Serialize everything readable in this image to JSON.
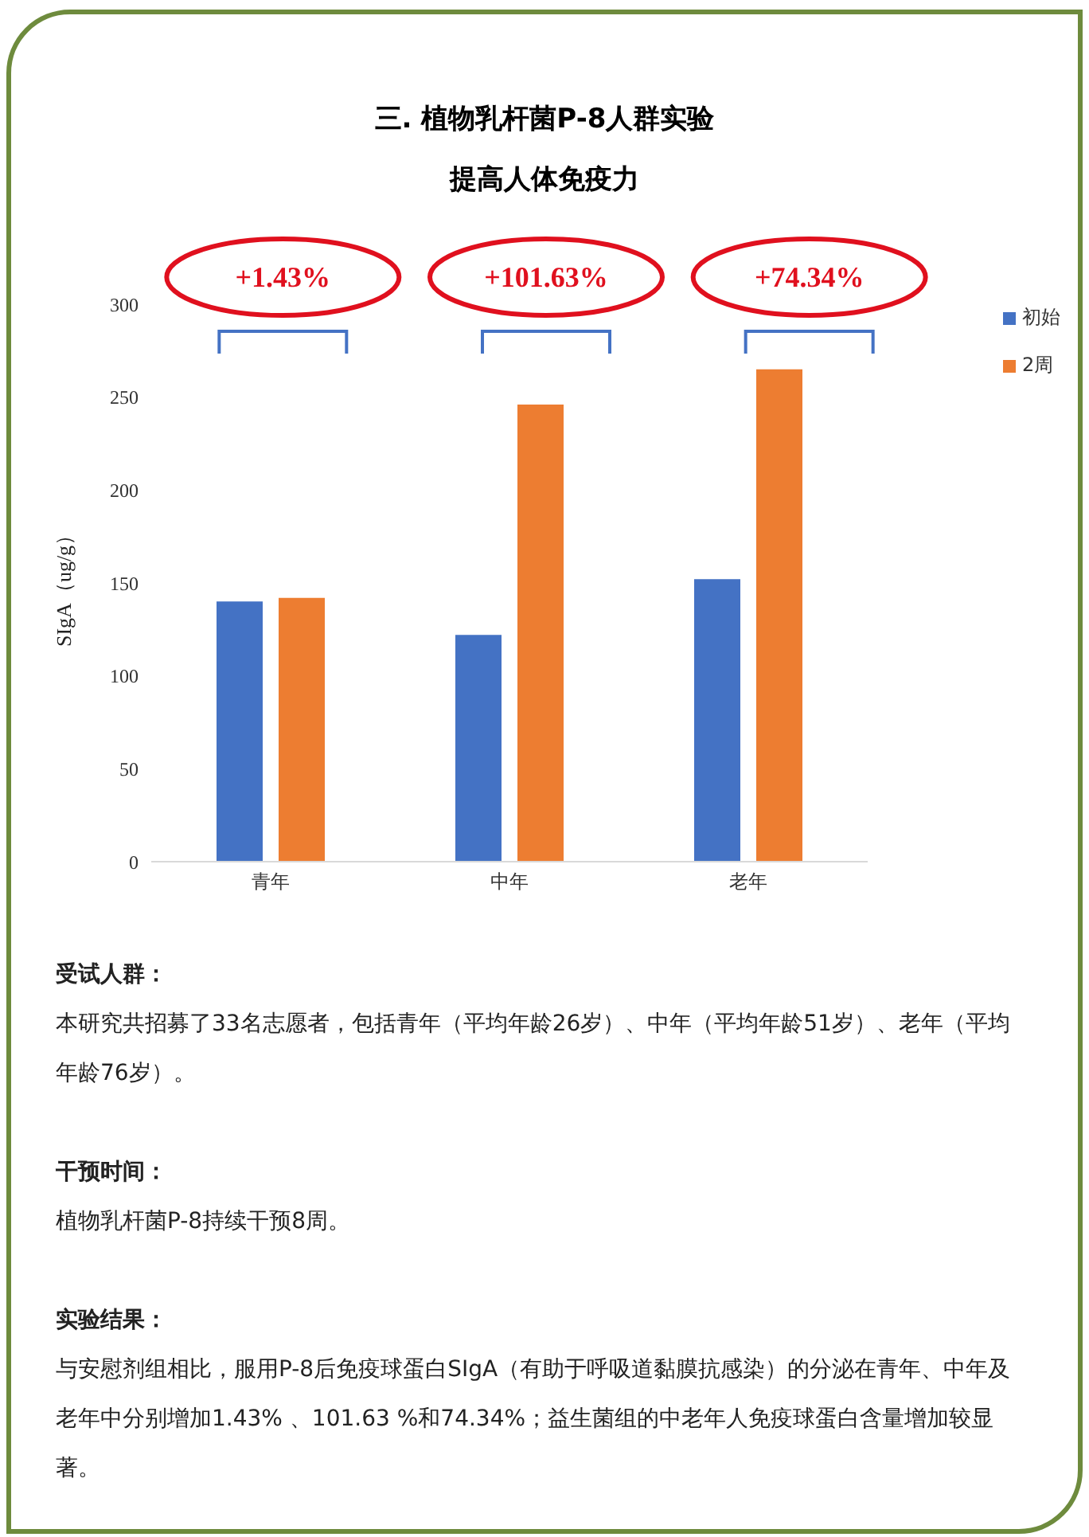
{
  "chart_data": {
    "type": "bar",
    "title": "三. 植物乳杆菌P-8人群实验",
    "subtitle": "提高人体免疫力",
    "ylabel": "SIgA（ug/g）",
    "categories": [
      "青年",
      "中年",
      "老年"
    ],
    "series": [
      {
        "name": "初始",
        "color": "#4472c4",
        "values": [
          140,
          122,
          152
        ]
      },
      {
        "name": "2周",
        "color": "#ed7d31",
        "values": [
          142,
          246,
          265
        ]
      }
    ],
    "ylim": [
      0,
      300
    ],
    "yticks": [
      0,
      50,
      100,
      150,
      200,
      250,
      300
    ],
    "grid": false,
    "legend": "top right",
    "annotations": [
      "+1.43%",
      "+101.63%",
      "+74.34%",
      "受试人群：",
      "本研究共招募了33名志愿者，包括青年（平均年龄26岁）、中年（平均年龄51岁）、老年（平均年龄76岁）。",
      "干预时间：",
      "植物乳杆菌P-8持续干预8周。",
      "实验结果：",
      "与安慰剂组相比，服用P-8后免疫球蛋白SIgA（有助于呼吸道黏膜抗感染）的分泌在青年、中年及老年中分别增加1.43% 、101.63 %和74.34%；益生菌组的中老年人免疫球蛋白含量增加较显著。"
    ]
  }
}
